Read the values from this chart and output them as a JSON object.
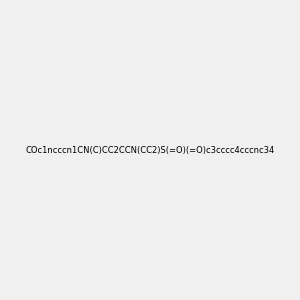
{
  "background_color": "#f0f0f0",
  "bond_color": "#1a1a1a",
  "N_color": "#0000ff",
  "O_color": "#ff0000",
  "S_color": "#cccc00",
  "smiles": "COc1ncccn1CN(C)CC2CCN(CC2)S(=O)(=O)c3cccc4cccnc34",
  "title": "",
  "figsize": [
    3.0,
    3.0
  ],
  "dpi": 100
}
